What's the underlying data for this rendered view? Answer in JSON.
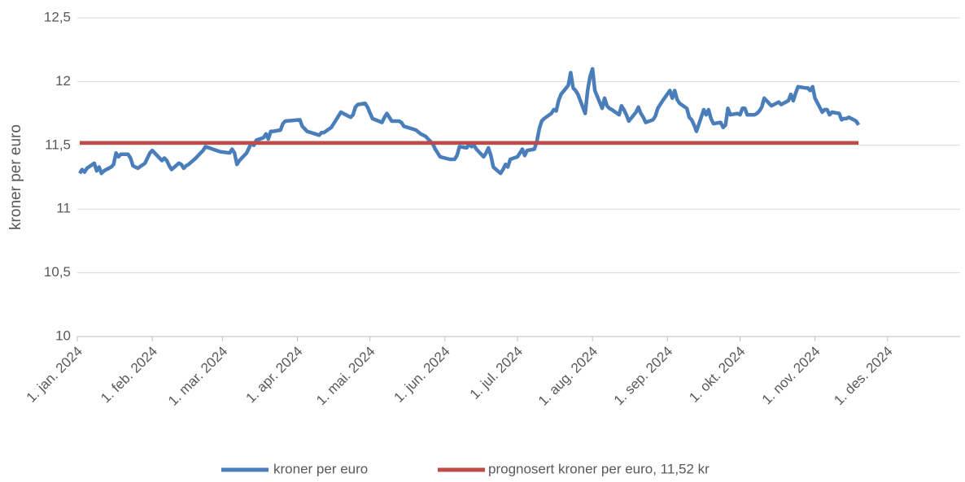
{
  "chart_data": {
    "type": "line",
    "y_label": "kroner per euro",
    "xlim": [
      "2024-01-01",
      "2024-12-31"
    ],
    "xticks": [
      {
        "value": "2024-01-01",
        "label": "1. jan. 2024"
      },
      {
        "value": "2024-02-01",
        "label": "1. feb. 2024"
      },
      {
        "value": "2024-03-01",
        "label": "1. mar. 2024"
      },
      {
        "value": "2024-04-01",
        "label": "1. apr. 2024"
      },
      {
        "value": "2024-05-01",
        "label": "1. mai. 2024"
      },
      {
        "value": "2024-06-01",
        "label": "1. jun. 2024"
      },
      {
        "value": "2024-07-01",
        "label": "1. jul. 2024"
      },
      {
        "value": "2024-08-01",
        "label": "1. aug. 2024"
      },
      {
        "value": "2024-09-01",
        "label": "1. sep. 2024"
      },
      {
        "value": "2024-10-01",
        "label": "1. okt. 2024"
      },
      {
        "value": "2024-11-01",
        "label": "1. nov. 2024"
      },
      {
        "value": "2024-12-01",
        "label": "1. des. 2024"
      }
    ],
    "ylim": [
      10,
      12.5
    ],
    "yticks": [
      {
        "value": 10,
        "label": "10"
      },
      {
        "value": 10.5,
        "label": "10,5"
      },
      11,
      {
        "value": 11.5,
        "label": "11,5"
      },
      12,
      {
        "value": 12.5,
        "label": "12,5"
      }
    ],
    "grid": true,
    "legend": "bottom",
    "series": [
      {
        "name": "kroner per euro",
        "color": "#4a7ebb",
        "x": [
          "2024-01-02",
          "2024-01-03",
          "2024-01-04",
          "2024-01-05",
          "2024-01-08",
          "2024-01-09",
          "2024-01-10",
          "2024-01-11",
          "2024-01-12",
          "2024-01-15",
          "2024-01-16",
          "2024-01-17",
          "2024-01-18",
          "2024-01-19",
          "2024-01-22",
          "2024-01-23",
          "2024-01-24",
          "2024-01-25",
          "2024-01-26",
          "2024-01-29",
          "2024-01-30",
          "2024-01-31",
          "2024-02-01",
          "2024-02-02",
          "2024-02-05",
          "2024-02-06",
          "2024-02-07",
          "2024-02-08",
          "2024-02-09",
          "2024-02-12",
          "2024-02-13",
          "2024-02-14",
          "2024-02-15",
          "2024-02-16",
          "2024-02-19",
          "2024-02-20",
          "2024-02-21",
          "2024-02-22",
          "2024-02-23",
          "2024-02-29",
          "2024-03-04",
          "2024-03-05",
          "2024-03-06",
          "2024-03-07",
          "2024-03-08",
          "2024-03-11",
          "2024-03-12",
          "2024-03-13",
          "2024-03-14",
          "2024-03-15",
          "2024-03-18",
          "2024-03-19",
          "2024-03-20",
          "2024-03-21",
          "2024-03-22",
          "2024-03-25",
          "2024-03-26",
          "2024-03-27",
          "2024-04-02",
          "2024-04-03",
          "2024-04-05",
          "2024-04-10",
          "2024-04-11",
          "2024-04-12",
          "2024-04-15",
          "2024-04-17",
          "2024-04-18",
          "2024-04-19",
          "2024-04-22",
          "2024-04-23",
          "2024-04-24",
          "2024-04-25",
          "2024-04-26",
          "2024-04-29",
          "2024-04-30",
          "2024-05-02",
          "2024-05-06",
          "2024-05-07",
          "2024-05-08",
          "2024-05-10",
          "2024-05-13",
          "2024-05-14",
          "2024-05-15",
          "2024-05-20",
          "2024-05-22",
          "2024-05-24",
          "2024-05-27",
          "2024-05-28",
          "2024-05-29",
          "2024-05-30",
          "2024-06-03",
          "2024-06-05",
          "2024-06-06",
          "2024-06-07",
          "2024-06-10",
          "2024-06-11",
          "2024-06-12",
          "2024-06-13",
          "2024-06-14",
          "2024-06-17",
          "2024-06-18",
          "2024-06-19",
          "2024-06-20",
          "2024-06-21",
          "2024-06-24",
          "2024-06-25",
          "2024-06-26",
          "2024-06-27",
          "2024-06-28",
          "2024-07-01",
          "2024-07-02",
          "2024-07-03",
          "2024-07-04",
          "2024-07-05",
          "2024-07-08",
          "2024-07-09",
          "2024-07-10",
          "2024-07-11",
          "2024-07-12",
          "2024-07-15",
          "2024-07-16",
          "2024-07-17",
          "2024-07-18",
          "2024-07-19",
          "2024-07-22",
          "2024-07-23",
          "2024-07-24",
          "2024-07-25",
          "2024-07-26",
          "2024-07-29",
          "2024-07-30",
          "2024-07-31",
          "2024-08-01",
          "2024-08-02",
          "2024-08-05",
          "2024-08-06",
          "2024-08-07",
          "2024-08-08",
          "2024-08-09",
          "2024-08-12",
          "2024-08-13",
          "2024-08-14",
          "2024-08-15",
          "2024-08-16",
          "2024-08-19",
          "2024-08-20",
          "2024-08-21",
          "2024-08-22",
          "2024-08-23",
          "2024-08-26",
          "2024-08-27",
          "2024-08-28",
          "2024-08-29",
          "2024-08-30",
          "2024-09-02",
          "2024-09-03",
          "2024-09-04",
          "2024-09-05",
          "2024-09-06",
          "2024-09-09",
          "2024-09-10",
          "2024-09-11",
          "2024-09-12",
          "2024-09-13",
          "2024-09-16",
          "2024-09-17",
          "2024-09-18",
          "2024-09-19",
          "2024-09-20",
          "2024-09-23",
          "2024-09-24",
          "2024-09-25",
          "2024-09-26",
          "2024-09-27",
          "2024-09-30",
          "2024-10-01",
          "2024-10-02",
          "2024-10-03",
          "2024-10-04",
          "2024-10-07",
          "2024-10-08",
          "2024-10-09",
          "2024-10-10",
          "2024-10-11",
          "2024-10-14",
          "2024-10-15",
          "2024-10-16",
          "2024-10-17",
          "2024-10-18",
          "2024-10-21",
          "2024-10-22",
          "2024-10-23",
          "2024-10-24",
          "2024-10-25",
          "2024-10-28",
          "2024-10-29",
          "2024-10-30",
          "2024-10-31",
          "2024-11-01",
          "2024-11-04",
          "2024-11-05",
          "2024-11-06",
          "2024-11-07",
          "2024-11-08",
          "2024-11-11",
          "2024-11-12",
          "2024-11-13",
          "2024-11-14",
          "2024-11-15",
          "2024-11-18",
          "2024-11-19"
        ],
        "values": [
          11.28,
          11.31,
          11.29,
          11.32,
          11.36,
          11.3,
          11.33,
          11.28,
          11.3,
          11.33,
          11.35,
          11.44,
          11.41,
          11.43,
          11.43,
          11.4,
          11.34,
          11.33,
          11.32,
          11.36,
          11.4,
          11.44,
          11.46,
          11.44,
          11.38,
          11.4,
          11.38,
          11.34,
          11.31,
          11.36,
          11.35,
          11.32,
          11.34,
          11.35,
          11.4,
          11.42,
          11.44,
          11.46,
          11.49,
          11.45,
          11.44,
          11.47,
          11.44,
          11.35,
          11.38,
          11.44,
          11.48,
          11.52,
          11.5,
          11.54,
          11.56,
          11.59,
          11.55,
          11.61,
          11.61,
          11.62,
          11.67,
          11.69,
          11.7,
          11.65,
          11.61,
          11.58,
          11.6,
          11.6,
          11.64,
          11.7,
          11.73,
          11.76,
          11.73,
          11.72,
          11.74,
          11.8,
          11.82,
          11.83,
          11.8,
          11.71,
          11.68,
          11.72,
          11.75,
          11.69,
          11.69,
          11.68,
          11.65,
          11.62,
          11.59,
          11.57,
          11.51,
          11.47,
          11.44,
          11.41,
          11.39,
          11.39,
          11.42,
          11.49,
          11.48,
          11.51,
          11.49,
          11.5,
          11.47,
          11.41,
          11.44,
          11.48,
          11.42,
          11.33,
          11.28,
          11.31,
          11.35,
          11.33,
          11.39,
          11.41,
          11.44,
          11.47,
          11.42,
          11.46,
          11.47,
          11.53,
          11.63,
          11.69,
          11.71,
          11.75,
          11.78,
          11.77,
          11.85,
          11.9,
          11.97,
          12.07,
          11.95,
          11.93,
          11.9,
          11.75,
          11.93,
          12.04,
          12.1,
          11.93,
          11.79,
          11.87,
          11.81,
          11.79,
          11.78,
          11.74,
          11.81,
          11.78,
          11.74,
          11.69,
          11.76,
          11.8,
          11.75,
          11.72,
          11.68,
          11.7,
          11.73,
          11.79,
          11.82,
          11.85,
          11.93,
          11.87,
          11.93,
          11.86,
          11.83,
          11.79,
          11.72,
          11.7,
          11.66,
          11.61,
          11.78,
          11.74,
          11.78,
          11.71,
          11.67,
          11.68,
          11.64,
          11.66,
          11.79,
          11.74,
          11.75,
          11.74,
          11.79,
          11.79,
          11.74,
          11.74,
          11.75,
          11.77,
          11.8,
          11.87,
          11.81,
          11.82,
          11.83,
          11.84,
          11.82,
          11.85,
          11.9,
          11.85,
          11.91,
          11.96,
          11.95,
          11.95,
          11.93,
          11.96,
          11.87,
          11.76,
          11.78,
          11.78,
          11.74,
          11.76,
          11.75,
          11.7,
          11.71,
          11.71,
          11.72,
          11.69,
          11.66
        ]
      },
      {
        "name": "prognosert kroner per euro, 11,52 kr",
        "color": "#be4b48",
        "x": [
          "2024-01-02",
          "2024-11-19"
        ],
        "values": [
          11.52,
          11.52
        ]
      }
    ]
  }
}
